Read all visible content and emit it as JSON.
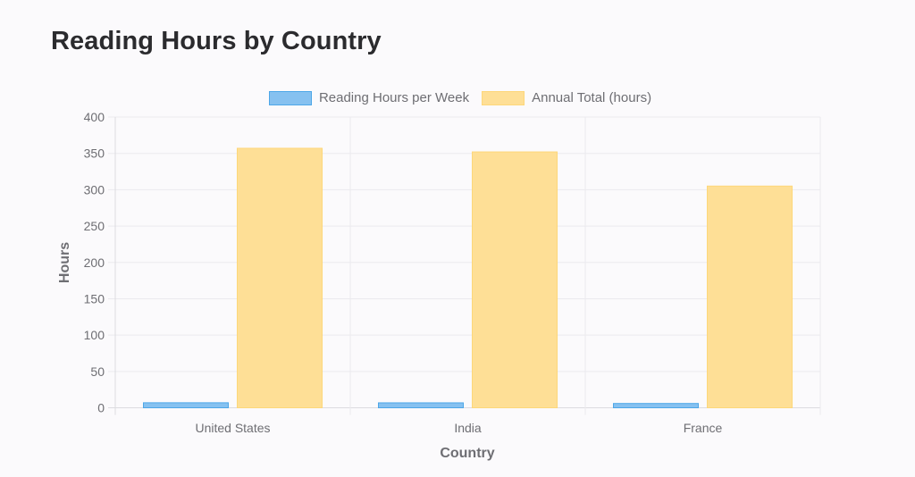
{
  "header": {
    "title": "Reading Hours by Country"
  },
  "legend": [
    {
      "label": "Reading Hours per Week",
      "fill": "#86c1f0",
      "stroke": "#4da7e8"
    },
    {
      "label": "Annual Total (hours)",
      "fill": "#fedf96",
      "stroke": "#fdd77a"
    }
  ],
  "axes": {
    "x_title": "Country",
    "y_title": "Hours",
    "y_ticks": [
      "0",
      "50",
      "100",
      "150",
      "200",
      "250",
      "300",
      "350",
      "400"
    ]
  },
  "chart_data": {
    "type": "bar",
    "title": "Reading Hours by Country",
    "categories": [
      "United States",
      "India",
      "France"
    ],
    "series": [
      {
        "name": "Reading Hours per Week",
        "values": [
          6.9,
          6.8,
          5.9
        ],
        "color": "#86c1f0"
      },
      {
        "name": "Annual Total (hours)",
        "values": [
          357,
          352,
          305
        ],
        "color": "#fedf96"
      }
    ],
    "xlabel": "Country",
    "ylabel": "Hours",
    "ylim": [
      0,
      400
    ],
    "y_tick_step": 50,
    "grid": true,
    "legend_position": "top"
  }
}
